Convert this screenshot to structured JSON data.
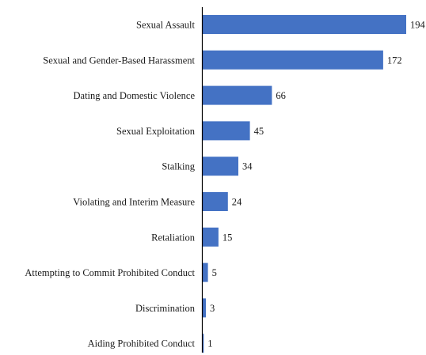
{
  "chart_data": {
    "type": "bar",
    "orientation": "horizontal",
    "title": "",
    "xlabel": "",
    "ylabel": "",
    "categories": [
      "Sexual Assault",
      "Sexual and Gender-Based Harassment",
      "Dating and Domestic Violence",
      "Sexual Exploitation",
      "Stalking",
      "Violating and Interim Measure",
      "Retaliation",
      "Attempting to Commit Prohibited Conduct",
      "Discrimination",
      "Aiding Prohibited Conduct"
    ],
    "values": [
      194,
      172,
      66,
      45,
      34,
      24,
      15,
      5,
      3,
      1
    ],
    "data_labels": [
      "194",
      "172",
      "66",
      "45",
      "34",
      "24",
      "15",
      "5",
      "3",
      "1"
    ],
    "xlim": [
      0,
      194
    ],
    "grid": false,
    "legend": "none",
    "bar_color": "#4472C4",
    "axis_color": "#000000"
  }
}
